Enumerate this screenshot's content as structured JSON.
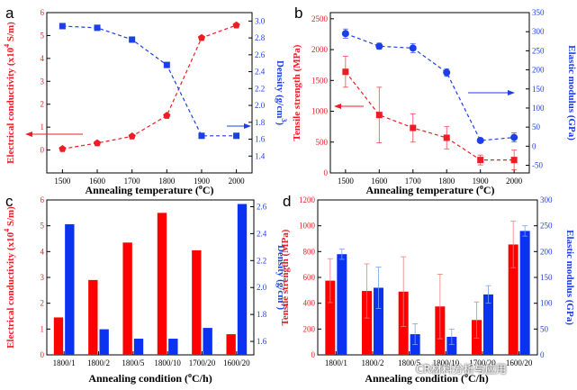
{
  "chart_data": [
    {
      "panel": "a",
      "type": "line",
      "xlabel": "Annealing temperature (°C)",
      "ylabel_left": "Electrical conductivity (x10⁴ S/m)",
      "ylabel_right": "Density (g/cm³)",
      "x": [
        1500,
        1600,
        1700,
        1800,
        1900,
        2000
      ],
      "xticks": [
        "1500",
        "1600",
        "1700",
        "1800",
        "1900",
        "2000"
      ],
      "ylim_left": [
        -1,
        6
      ],
      "yticks_left": [
        "0",
        "1",
        "2",
        "3",
        "4",
        "5",
        "6"
      ],
      "ylim_right": [
        1.2,
        3.1
      ],
      "yticks_right": [
        "1.4",
        "1.6",
        "1.8",
        "2.0",
        "2.2",
        "2.4",
        "2.6",
        "2.8",
        "3.0"
      ],
      "series": [
        {
          "name": "Electrical conductivity",
          "axis": "left",
          "color": "#ee1c24",
          "marker": "pentagon",
          "values": [
            0.05,
            0.3,
            0.6,
            1.5,
            4.9,
            5.45
          ]
        },
        {
          "name": "Density",
          "axis": "right",
          "color": "#1c3fe6",
          "marker": "square",
          "values": [
            2.94,
            2.92,
            2.78,
            2.48,
            1.64,
            1.64
          ]
        }
      ]
    },
    {
      "panel": "b",
      "type": "line",
      "xlabel": "Annealing temperature (°C)",
      "ylabel_left": "Tensile strength (MPa)",
      "ylabel_right": "Elastic modulus (GPa)",
      "x": [
        1500,
        1600,
        1700,
        1800,
        1900,
        2000
      ],
      "xticks": [
        "1500",
        "1600",
        "1700",
        "1800",
        "1900",
        "2000"
      ],
      "ylim_left": [
        0,
        2600
      ],
      "yticks_left": [
        "0",
        "500",
        "1000",
        "1500",
        "2000",
        "2500"
      ],
      "ylim_right": [
        -70,
        350
      ],
      "yticks_right": [
        "-50",
        "0",
        "50",
        "100",
        "150",
        "200",
        "250",
        "300",
        "350"
      ],
      "series": [
        {
          "name": "Tensile strength",
          "axis": "left",
          "color": "#ee1c24",
          "marker": "square",
          "values": [
            1640,
            940,
            730,
            570,
            210,
            210
          ],
          "errors": [
            250,
            450,
            230,
            180,
            80,
            160
          ]
        },
        {
          "name": "Elastic modulus",
          "axis": "right",
          "color": "#1c3fe6",
          "marker": "circle",
          "values": [
            295,
            262,
            257,
            193,
            15,
            23
          ],
          "errors": [
            12,
            8,
            12,
            10,
            5,
            12
          ]
        }
      ]
    },
    {
      "panel": "c",
      "type": "bar",
      "xlabel": "Annealing condition (°C/h)",
      "ylabel_left": "Electrical conductivity (x10⁴ S/m)",
      "ylabel_right": "Density (g/cm³)",
      "categories": [
        "1800/1",
        "1800/2",
        "1800/5",
        "1800/10",
        "1700/20",
        "1600/20"
      ],
      "ylim_left": [
        0,
        6
      ],
      "yticks_left": [
        "0",
        "1",
        "2",
        "3",
        "4",
        "5",
        "6"
      ],
      "ylim_right": [
        1.5,
        2.65
      ],
      "yticks_right": [
        "1.6",
        "1.8",
        "2.0",
        "2.2",
        "2.4",
        "2.6"
      ],
      "series": [
        {
          "name": "Electrical conductivity",
          "axis": "left",
          "color": "#ff0000",
          "values": [
            1.45,
            2.9,
            4.35,
            5.5,
            4.05,
            0.8
          ]
        },
        {
          "name": "Density",
          "axis": "right",
          "color": "#0a32f0",
          "values": [
            2.47,
            1.69,
            1.62,
            1.62,
            1.7,
            2.62
          ]
        }
      ]
    },
    {
      "panel": "d",
      "type": "bar",
      "xlabel": "Annealing condition (°C/h)",
      "ylabel_left": "Tensile strength (MPa)",
      "ylabel_right": "Elastic modulus (GPa)",
      "categories": [
        "1800/1",
        "1800/2",
        "1800/5",
        "1800/10",
        "1700/20",
        "1600/20"
      ],
      "ylim_left": [
        0,
        1200
      ],
      "yticks_left": [
        "0",
        "200",
        "400",
        "600",
        "800",
        "1000",
        "1200"
      ],
      "ylim_right": [
        0,
        300
      ],
      "yticks_right": [
        "0",
        "50",
        "100",
        "150",
        "200",
        "250",
        "300"
      ],
      "series": [
        {
          "name": "Tensile strength",
          "axis": "left",
          "color": "#ff0000",
          "values": [
            575,
            495,
            490,
            375,
            270,
            855
          ],
          "errors": [
            170,
            210,
            270,
            250,
            140,
            180
          ]
        },
        {
          "name": "Elastic modulus",
          "axis": "right",
          "color": "#0a32f0",
          "values": [
            195,
            130,
            40,
            35,
            117,
            240
          ],
          "errors": [
            10,
            40,
            20,
            15,
            17,
            10
          ]
        }
      ]
    }
  ],
  "labels": {
    "panel_a": "a",
    "panel_b": "b",
    "panel_c": "c",
    "panel_d": "d",
    "a_xlabel": "Annealing temperature (",
    "b_xlabel": "Annealing temperature (",
    "c_xlabel": "Annealing condition (",
    "d_xlabel": "Annealing condition (",
    "deg": "o",
    "unit_C": "C)",
    "unit_Ch": "C/h)",
    "ec_main": "Electrical conductivity (x10",
    "ec_exp": "4",
    "ec_unit": " S/m)",
    "dens_main": "Density (g/cm",
    "dens_exp": "3",
    "dens_close": ")",
    "tensile": "Tensile strength (MPa)",
    "elastic": "Elastic modulus (GPa)"
  },
  "watermark": "CR材料分析与应用"
}
